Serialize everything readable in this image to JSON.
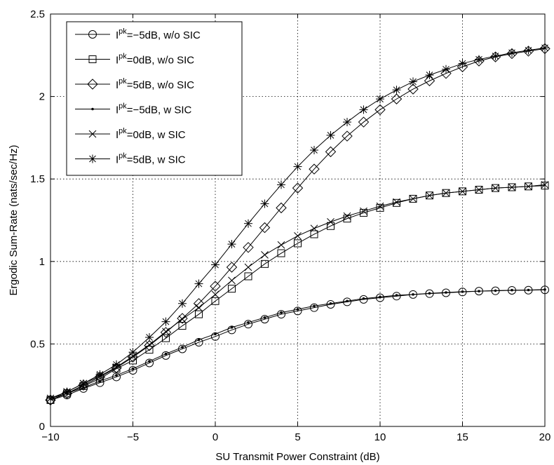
{
  "chart_data": {
    "type": "line",
    "xlabel": "SU Transmit Power Constraint (dB)",
    "ylabel": "Ergodic Sum-Rate (nats/sec/Hz)",
    "xlim": [
      -10,
      20
    ],
    "ylim": [
      0,
      2.5
    ],
    "xticks": [
      "−10",
      "−5",
      "0",
      "5",
      "10",
      "15",
      "20"
    ],
    "yticks": [
      "0",
      "0.5",
      "1",
      "1.5",
      "2",
      "2.5"
    ],
    "grid": true,
    "legend_position": "top-left",
    "x": [
      -10,
      -9,
      -8,
      -7,
      -6,
      -5,
      -4,
      -3,
      -2,
      -1,
      0,
      1,
      2,
      3,
      4,
      5,
      6,
      7,
      8,
      9,
      10,
      11,
      12,
      13,
      14,
      15,
      16,
      17,
      18,
      19,
      20
    ],
    "series": [
      {
        "legend_base": "I",
        "legend_sup": "pk",
        "legend_rest": "=−5dB, w/o SIC",
        "marker": "circle",
        "values": [
          0.16,
          0.19,
          0.23,
          0.265,
          0.3,
          0.34,
          0.385,
          0.43,
          0.47,
          0.51,
          0.545,
          0.585,
          0.62,
          0.65,
          0.68,
          0.7,
          0.72,
          0.74,
          0.755,
          0.77,
          0.78,
          0.79,
          0.8,
          0.805,
          0.81,
          0.815,
          0.82,
          0.822,
          0.825,
          0.826,
          0.828
        ]
      },
      {
        "legend_base": "I",
        "legend_sup": "pk",
        "legend_rest": "=0dB, w/o SIC",
        "marker": "square",
        "values": [
          0.16,
          0.2,
          0.245,
          0.29,
          0.35,
          0.4,
          0.465,
          0.535,
          0.61,
          0.68,
          0.76,
          0.835,
          0.91,
          0.985,
          1.05,
          1.11,
          1.165,
          1.215,
          1.26,
          1.295,
          1.325,
          1.355,
          1.38,
          1.4,
          1.415,
          1.425,
          1.435,
          1.445,
          1.45,
          1.455,
          1.46
        ]
      },
      {
        "legend_base": "I",
        "legend_sup": "pk",
        "legend_rest": "=5dB, w/o SIC",
        "marker": "diamond",
        "values": [
          0.16,
          0.2,
          0.25,
          0.3,
          0.355,
          0.42,
          0.49,
          0.57,
          0.655,
          0.745,
          0.85,
          0.965,
          1.085,
          1.205,
          1.325,
          1.445,
          1.56,
          1.665,
          1.76,
          1.845,
          1.92,
          1.985,
          2.045,
          2.095,
          2.14,
          2.18,
          2.215,
          2.24,
          2.26,
          2.275,
          2.29
        ]
      },
      {
        "legend_base": "I",
        "legend_sup": "pk",
        "legend_rest": "=−5dB, w SIC",
        "marker": "dot",
        "values": [
          0.17,
          0.2,
          0.235,
          0.275,
          0.31,
          0.35,
          0.395,
          0.44,
          0.48,
          0.525,
          0.56,
          0.6,
          0.63,
          0.66,
          0.69,
          0.71,
          0.73,
          0.745,
          0.76,
          0.775,
          0.785,
          0.795,
          0.8,
          0.807,
          0.812,
          0.817,
          0.82,
          0.823,
          0.826,
          0.827,
          0.83
        ]
      },
      {
        "legend_base": "I",
        "legend_sup": "pk",
        "legend_rest": "=0dB, w SIC",
        "marker": "x",
        "values": [
          0.17,
          0.21,
          0.26,
          0.305,
          0.36,
          0.425,
          0.495,
          0.575,
          0.65,
          0.72,
          0.8,
          0.885,
          0.965,
          1.04,
          1.1,
          1.155,
          1.2,
          1.24,
          1.275,
          1.305,
          1.335,
          1.36,
          1.38,
          1.4,
          1.415,
          1.425,
          1.435,
          1.445,
          1.45,
          1.455,
          1.465
        ]
      },
      {
        "legend_base": "I",
        "legend_sup": "pk",
        "legend_rest": "=5dB, w SIC",
        "marker": "star",
        "values": [
          0.17,
          0.21,
          0.26,
          0.315,
          0.375,
          0.45,
          0.54,
          0.635,
          0.745,
          0.865,
          0.98,
          1.105,
          1.23,
          1.35,
          1.465,
          1.575,
          1.675,
          1.765,
          1.845,
          1.92,
          1.985,
          2.04,
          2.09,
          2.13,
          2.165,
          2.2,
          2.225,
          2.245,
          2.265,
          2.28,
          2.295
        ]
      }
    ]
  }
}
